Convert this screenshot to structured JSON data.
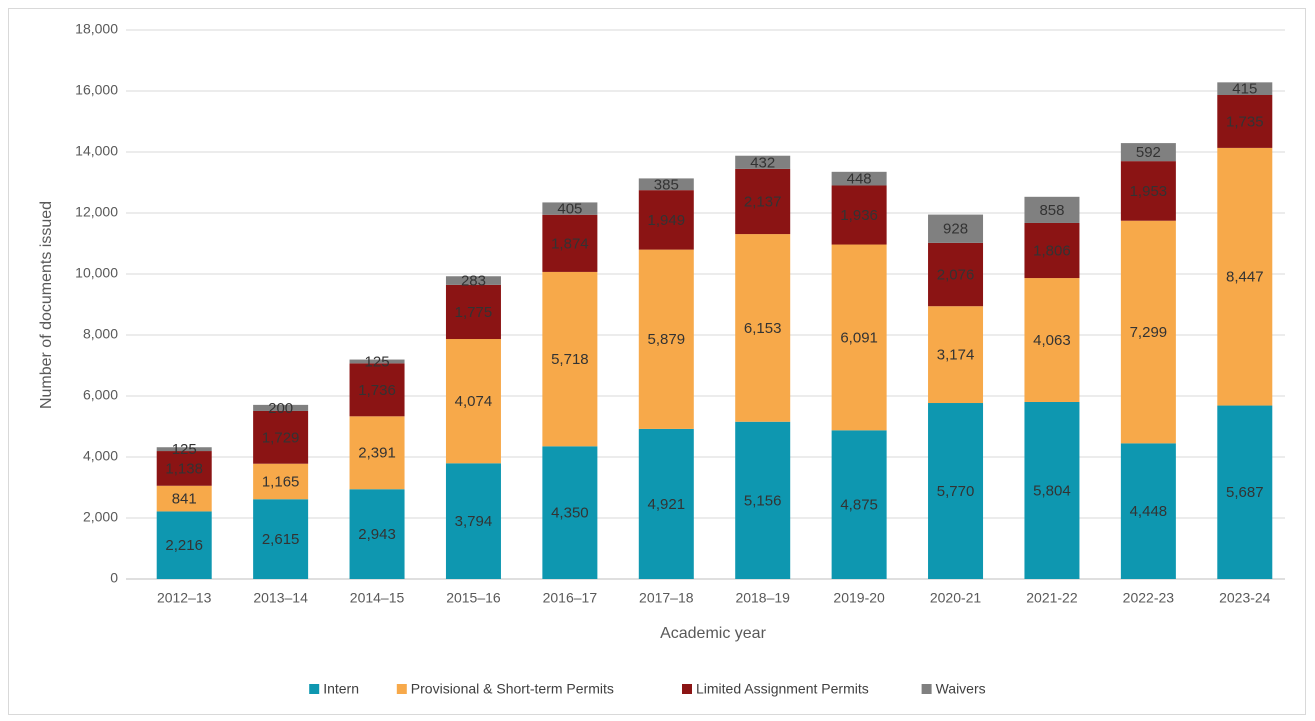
{
  "chart_data": {
    "type": "stacked_bar",
    "x_label": "Academic year",
    "y_label": "Number of documents issued",
    "categories": [
      "2012–13",
      "2013–14",
      "2014–15",
      "2015–16",
      "2016–17",
      "2017–18",
      "2018–19",
      "2019-20",
      "2020-21",
      "2021-22",
      "2022-23",
      "2023-24"
    ],
    "series": [
      {
        "name": "Intern",
        "color": "#0e97b0",
        "values": [
          2216,
          2615,
          2943,
          3794,
          4350,
          4921,
          5156,
          4875,
          5770,
          5804,
          4448,
          5687
        ],
        "value_labels": [
          "2,216",
          "2,615",
          "2,943",
          "3,794",
          "4,350",
          "4,921",
          "5,156",
          "4,875",
          "5,770",
          "5,804",
          "4,448",
          "5,687"
        ]
      },
      {
        "name": "Provisional & Short-term Permits",
        "color": "#f7a94a",
        "values": [
          841,
          1165,
          2391,
          4074,
          5718,
          5879,
          6153,
          6091,
          3174,
          4063,
          7299,
          8447
        ],
        "value_labels": [
          "841",
          "1,165",
          "2,391",
          "4,074",
          "5,718",
          "5,879",
          "6,153",
          "6,091",
          "3,174",
          "4,063",
          "7,299",
          "8,447"
        ]
      },
      {
        "name": "Limited Assignment Permits",
        "color": "#8b1414",
        "values": [
          1138,
          1729,
          1736,
          1775,
          1874,
          1949,
          2137,
          1936,
          2076,
          1806,
          1953,
          1735
        ],
        "value_labels": [
          "1,138",
          "1,729",
          "1,736",
          "1,775",
          "1,874",
          "1,949",
          "2,137",
          "1,936",
          "2,076",
          "1,806",
          "1,953",
          "1,735"
        ]
      },
      {
        "name": "Waivers",
        "color": "#808080",
        "values": [
          125,
          200,
          125,
          283,
          405,
          385,
          432,
          448,
          928,
          858,
          592,
          415
        ]
      }
    ],
    "ylim": [
      0,
      18000
    ],
    "yticks": [
      0,
      {
        "value": 2000,
        "label": "2,000"
      },
      {
        "value": 4000,
        "label": "4,000"
      },
      {
        "value": 6000,
        "label": "6,000"
      },
      {
        "value": 8000,
        "label": "8,000"
      },
      {
        "value": 10000,
        "label": "10,000"
      },
      {
        "value": 12000,
        "label": "12,000"
      },
      {
        "value": 14000,
        "label": "14,000"
      },
      {
        "value": 16000,
        "label": "16,000"
      },
      {
        "value": 18000,
        "label": "18,000"
      }
    ],
    "grid": true,
    "legend": "bottom"
  }
}
